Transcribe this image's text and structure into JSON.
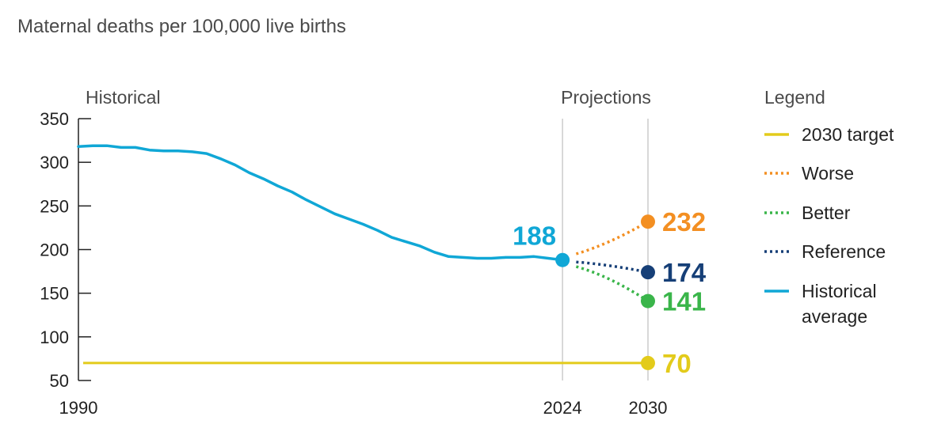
{
  "chart_data": {
    "type": "line",
    "title": "Maternal deaths per 100,000 live births",
    "section_labels": {
      "historical": "Historical",
      "projections": "Projections"
    },
    "x_ticks": [
      1990,
      2024,
      2030
    ],
    "y_ticks": [
      50,
      100,
      150,
      200,
      250,
      300,
      350
    ],
    "xlim": [
      1990,
      2030
    ],
    "ylim": [
      50,
      350
    ],
    "reference_lines_x": [
      2024,
      2030
    ],
    "legend": {
      "title": "Legend",
      "placement": "right",
      "entries": [
        {
          "key": "target",
          "label": "2030 target",
          "style": "solid"
        },
        {
          "key": "worse",
          "label": "Worse",
          "style": "dotted"
        },
        {
          "key": "better",
          "label": "Better",
          "style": "dotted"
        },
        {
          "key": "reference",
          "label": "Reference",
          "style": "dotted"
        },
        {
          "key": "historical",
          "label_lines": [
            "Historical",
            "average"
          ],
          "style": "solid"
        }
      ]
    },
    "colors": {
      "historical": "#10a7d6",
      "target": "#e3cb1b",
      "worse": "#f38f22",
      "better": "#3ab54a",
      "reference": "#163f77",
      "axis": "#222222",
      "gridline": "#cccccc"
    },
    "series": {
      "historical": {
        "x": [
          1990,
          1991,
          1992,
          1993,
          1994,
          1995,
          1996,
          1997,
          1998,
          1999,
          2000,
          2001,
          2002,
          2003,
          2004,
          2005,
          2006,
          2007,
          2008,
          2009,
          2010,
          2011,
          2012,
          2013,
          2014,
          2015,
          2016,
          2017,
          2018,
          2019,
          2020,
          2021,
          2022,
          2023,
          2024
        ],
        "y": [
          318,
          319,
          319,
          317,
          317,
          314,
          313,
          313,
          312,
          310,
          304,
          297,
          288,
          281,
          273,
          266,
          257,
          249,
          241,
          235,
          229,
          222,
          214,
          209,
          204,
          197,
          192,
          191,
          190,
          190,
          191,
          191,
          192,
          190,
          188
        ]
      },
      "worse": {
        "x": [
          2024,
          2030
        ],
        "y": [
          188,
          232
        ]
      },
      "better": {
        "x": [
          2024,
          2030
        ],
        "y": [
          188,
          141
        ]
      },
      "reference": {
        "x": [
          2024,
          2030
        ],
        "y": [
          188,
          174
        ]
      },
      "target": {
        "x": [
          1990,
          2030
        ],
        "y": [
          70,
          70
        ]
      }
    },
    "end_labels": [
      {
        "key": "historical",
        "x": 2024,
        "y": 188,
        "text": "188"
      },
      {
        "key": "worse",
        "x": 2030,
        "y": 232,
        "text": "232"
      },
      {
        "key": "reference",
        "x": 2030,
        "y": 174,
        "text": "174"
      },
      {
        "key": "better",
        "x": 2030,
        "y": 141,
        "text": "141"
      },
      {
        "key": "target",
        "x": 2030,
        "y": 70,
        "text": "70"
      }
    ]
  }
}
